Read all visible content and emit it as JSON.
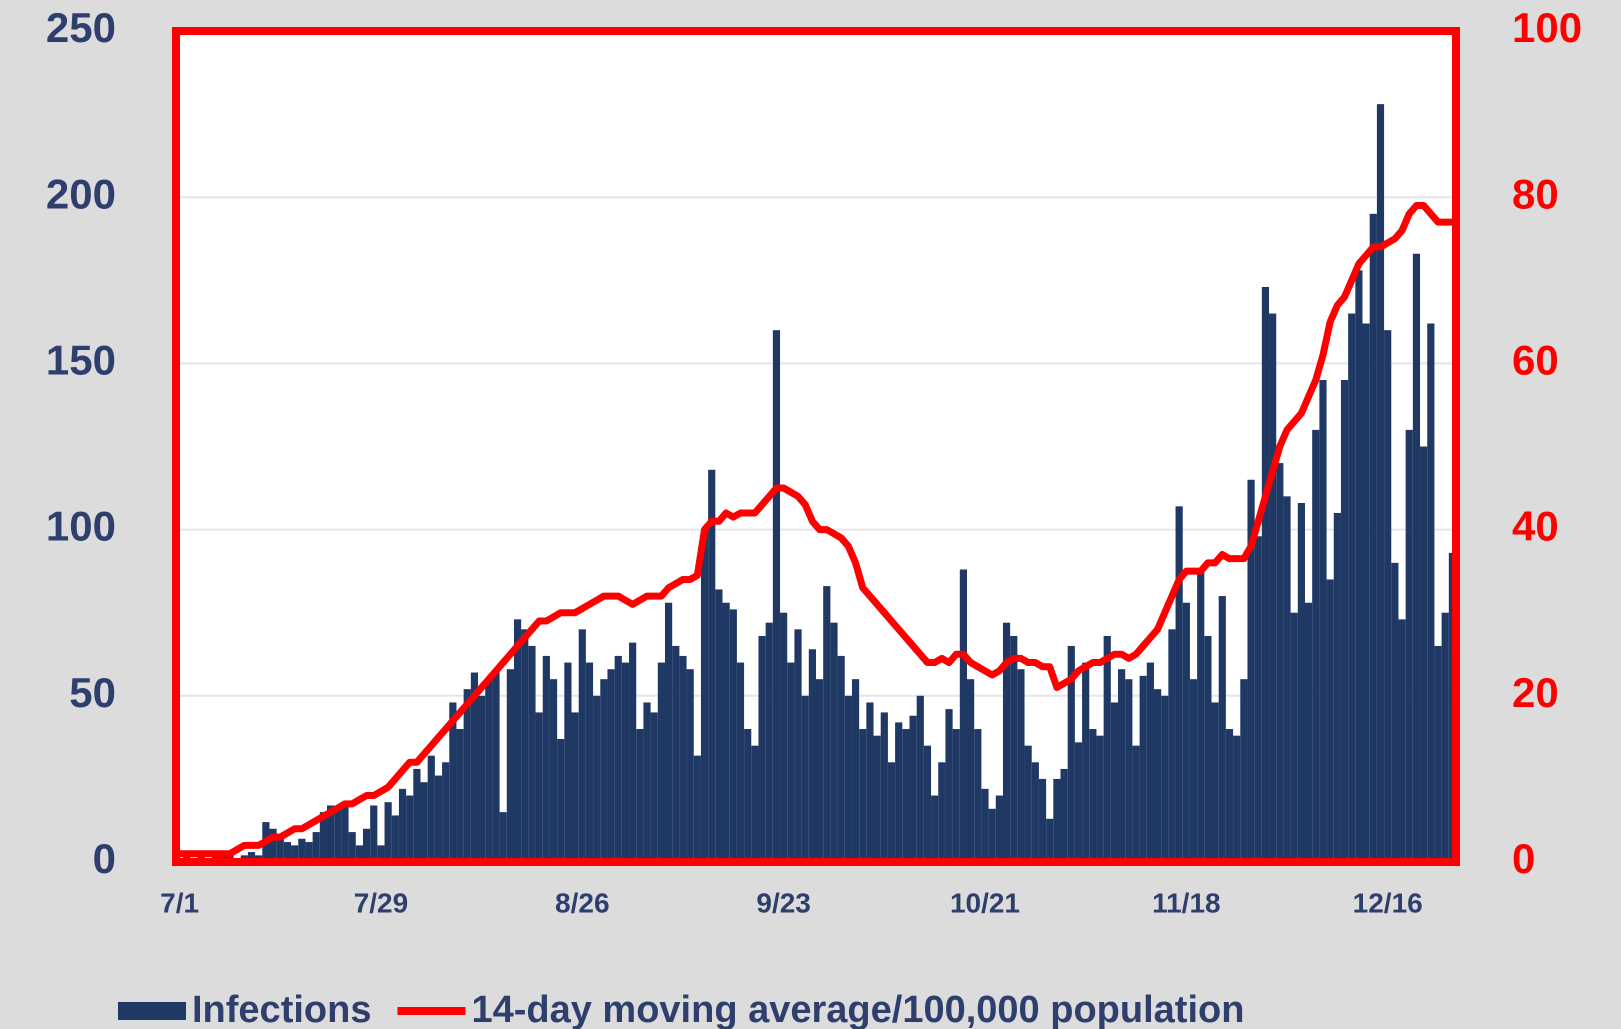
{
  "chart_data": {
    "type": "bar",
    "categories": [
      "7/1",
      null,
      null,
      null,
      null,
      null,
      null,
      null,
      null,
      null,
      null,
      null,
      null,
      null,
      null,
      null,
      null,
      null,
      null,
      null,
      null,
      null,
      null,
      null,
      null,
      null,
      null,
      null,
      "7/29",
      null,
      null,
      null,
      null,
      null,
      null,
      null,
      null,
      null,
      null,
      null,
      null,
      null,
      null,
      null,
      null,
      null,
      null,
      null,
      null,
      null,
      null,
      null,
      null,
      null,
      null,
      null,
      "8/26",
      null,
      null,
      null,
      null,
      null,
      null,
      null,
      null,
      null,
      null,
      null,
      null,
      null,
      null,
      null,
      null,
      null,
      null,
      null,
      null,
      null,
      null,
      null,
      null,
      null,
      null,
      null,
      "9/23",
      null,
      null,
      null,
      null,
      null,
      null,
      null,
      null,
      null,
      null,
      null,
      null,
      null,
      null,
      null,
      null,
      null,
      null,
      null,
      null,
      null,
      null,
      null,
      null,
      null,
      null,
      null,
      "10/21",
      null,
      null,
      null,
      null,
      null,
      null,
      null,
      null,
      null,
      null,
      null,
      null,
      null,
      null,
      null,
      null,
      null,
      null,
      null,
      null,
      null,
      null,
      null,
      null,
      null,
      null,
      null,
      "11/18",
      null,
      null,
      null,
      null,
      null,
      null,
      null,
      null,
      null,
      null,
      null,
      null,
      null,
      null,
      null,
      null,
      null,
      null,
      null,
      null,
      null,
      null,
      null,
      null,
      null,
      null,
      null,
      "12/16",
      null,
      null,
      null,
      null,
      null,
      null,
      null,
      null,
      null
    ],
    "series": [
      {
        "name": "Infections",
        "type": "bar",
        "color": "#1f3864",
        "values": [
          1,
          2,
          1,
          2,
          1,
          2,
          3,
          2,
          1,
          2,
          3,
          2,
          12,
          10,
          8,
          6,
          5,
          7,
          6,
          9,
          15,
          17,
          16,
          18,
          9,
          5,
          10,
          17,
          5,
          18,
          14,
          22,
          20,
          28,
          24,
          32,
          26,
          30,
          48,
          40,
          52,
          57,
          50,
          55,
          57,
          15,
          58,
          73,
          70,
          65,
          45,
          62,
          55,
          37,
          60,
          45,
          70,
          60,
          50,
          55,
          58,
          62,
          60,
          66,
          40,
          48,
          45,
          60,
          78,
          65,
          62,
          58,
          32,
          100,
          118,
          82,
          78,
          76,
          60,
          40,
          35,
          68,
          72,
          160,
          75,
          60,
          70,
          50,
          64,
          55,
          83,
          72,
          62,
          50,
          55,
          40,
          48,
          38,
          45,
          30,
          42,
          40,
          44,
          50,
          35,
          20,
          30,
          46,
          40,
          88,
          55,
          40,
          22,
          16,
          20,
          72,
          68,
          58,
          35,
          30,
          25,
          13,
          25,
          28,
          65,
          36,
          60,
          40,
          38,
          68,
          48,
          58,
          55,
          35,
          56,
          60,
          52,
          50,
          70,
          107,
          78,
          55,
          88,
          68,
          48,
          80,
          40,
          38,
          55,
          115,
          98,
          173,
          165,
          120,
          110,
          75,
          108,
          78,
          130,
          145,
          85,
          105,
          145,
          165,
          178,
          162,
          195,
          228,
          160,
          90,
          73,
          130,
          183,
          125,
          162,
          65,
          75,
          93
        ]
      },
      {
        "name": "14-day moving average/100,000 population",
        "type": "line",
        "axis": "y2",
        "color": "#ff0000",
        "values": [
          1,
          1,
          1,
          1,
          1,
          1,
          1,
          1,
          1.5,
          2,
          2,
          2,
          2.5,
          3,
          3,
          3.5,
          4,
          4,
          4.5,
          5,
          5.5,
          6,
          6.5,
          7,
          7,
          7.5,
          8,
          8,
          8.5,
          9,
          10,
          11,
          12,
          12,
          13,
          14,
          15,
          16,
          17,
          18,
          19,
          20,
          21,
          22,
          23,
          24,
          25,
          26,
          27,
          28,
          29,
          29,
          29.5,
          30,
          30,
          30,
          30.5,
          31,
          31.5,
          32,
          32,
          32,
          31.5,
          31,
          31.5,
          32,
          32,
          32,
          33,
          33.5,
          34,
          34,
          34.5,
          40,
          41,
          41,
          42,
          41.5,
          42,
          42,
          42,
          43,
          44,
          45,
          45,
          44.5,
          44,
          43,
          41,
          40,
          40,
          39.5,
          39,
          38,
          36,
          33,
          32,
          31,
          30,
          29,
          28,
          27,
          26,
          25,
          24,
          24,
          24.5,
          24,
          25,
          25,
          24,
          23.5,
          23,
          22.5,
          23,
          24,
          24.5,
          24.5,
          24,
          24,
          23.5,
          23.5,
          21,
          21.5,
          22,
          23,
          23.5,
          24,
          24,
          24.5,
          25,
          25,
          24.5,
          25,
          26,
          27,
          28,
          30,
          32,
          34,
          35,
          35,
          35,
          36,
          36,
          37,
          36.5,
          36.5,
          36.5,
          38,
          41,
          44,
          47,
          50,
          52,
          53,
          54,
          56,
          58,
          61,
          65,
          67,
          68,
          70,
          72,
          73,
          74,
          74,
          74.5,
          75,
          76,
          78,
          79,
          79,
          78,
          77,
          77,
          77
        ]
      }
    ],
    "ylim": [
      0,
      250
    ],
    "yticks": [
      0,
      50,
      100,
      150,
      200,
      250
    ],
    "y2lim": [
      0,
      100
    ],
    "y2ticks": [
      0,
      20,
      40,
      60,
      80,
      100
    ],
    "grid": true
  }
}
